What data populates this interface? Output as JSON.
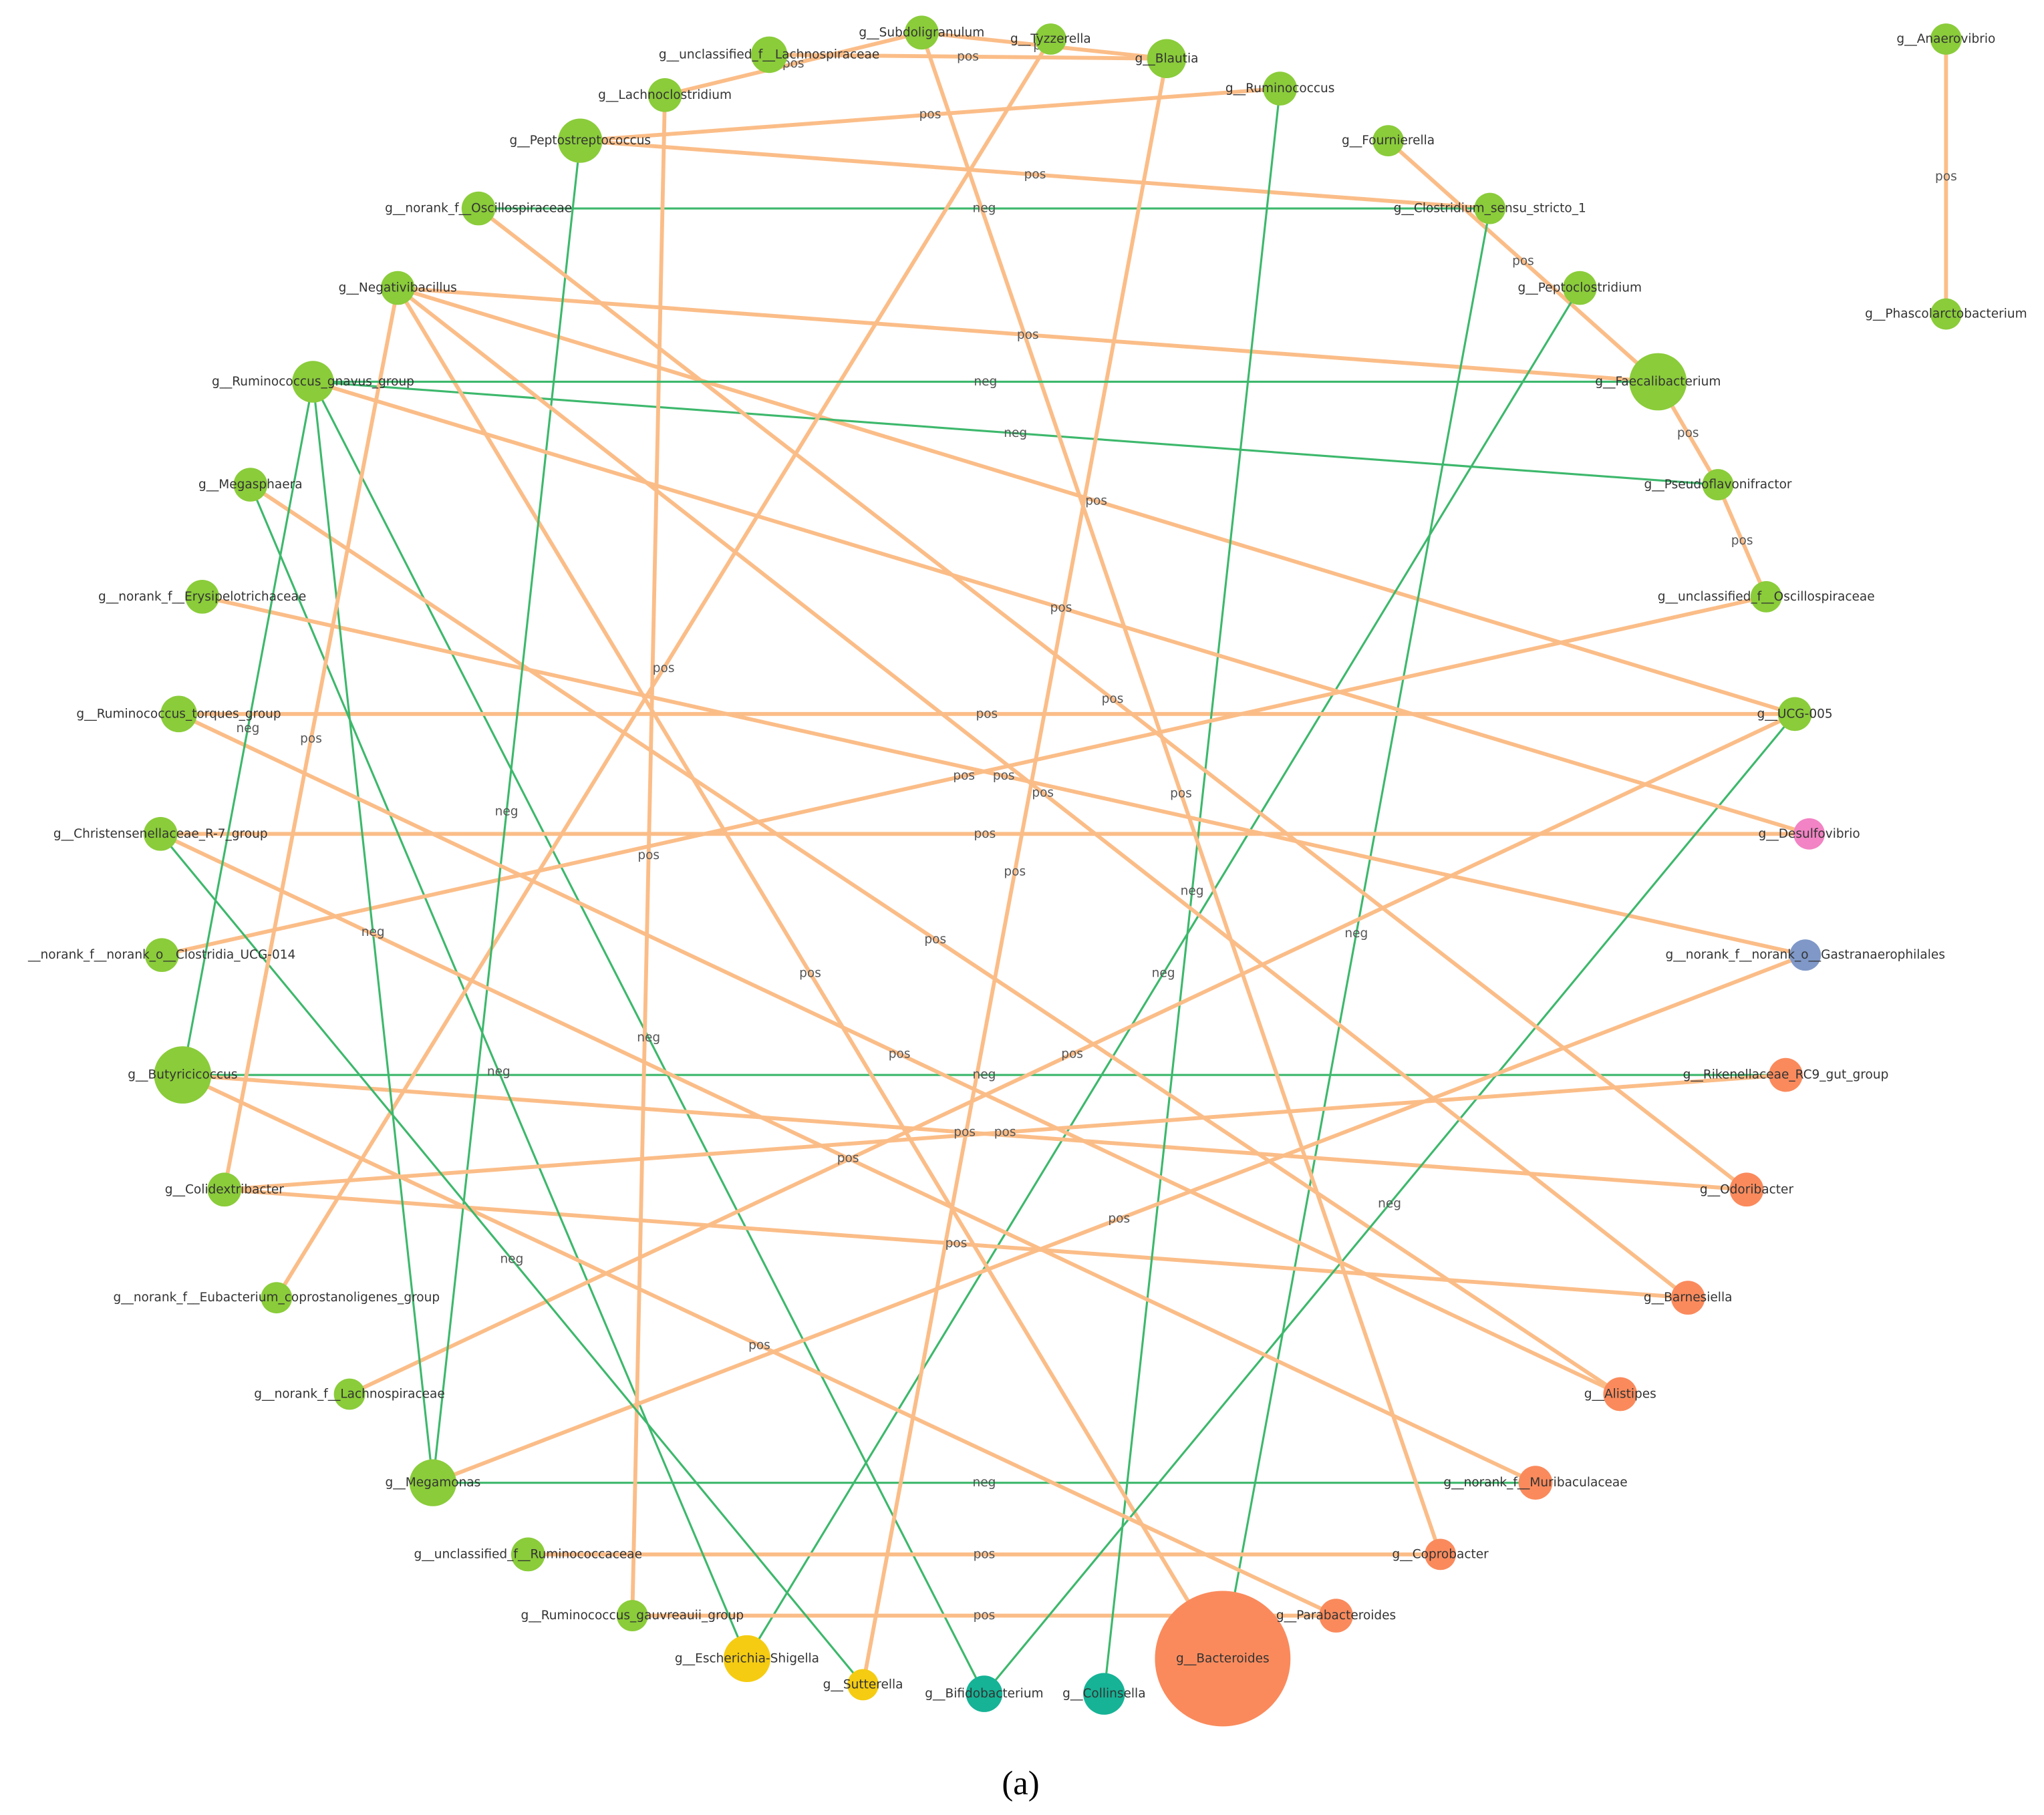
{
  "nodes": [
    {
      "label": "g__Subdoligranulum",
      "color": "#8acc3a"
    },
    {
      "label": "g__Tyzzerella",
      "color": "#8acc3a"
    },
    {
      "label": "g__Blautia",
      "color": "#8acc3a"
    },
    {
      "label": "g__unclassified_f__Lachnospiraceae",
      "color": "#8acc3a"
    },
    {
      "label": "g__Lachnoclostridium",
      "color": "#8acc3a"
    },
    {
      "label": "g__Ruminococcus",
      "color": "#8acc3a"
    },
    {
      "label": "g__Fournierella",
      "color": "#8acc3a"
    },
    {
      "label": "g__Peptostreptococcus",
      "color": "#8acc3a"
    },
    {
      "label": "g__norank_f__Oscillospiraceae",
      "color": "#8acc3a"
    },
    {
      "label": "g__Clostridium_sensu_stricto_1",
      "color": "#8acc3a"
    },
    {
      "label": "g__Peptoclostridium",
      "color": "#8acc3a"
    },
    {
      "label": "g__Negativibacillus",
      "color": "#8acc3a"
    },
    {
      "label": "g__Faecalibacterium",
      "color": "#8acc3a"
    },
    {
      "label": "g__Ruminococcus_gnavus_group",
      "color": "#8acc3a"
    },
    {
      "label": "g__Megasphaera",
      "color": "#8acc3a"
    },
    {
      "label": "g__Pseudoflavonifractor",
      "color": "#8acc3a"
    },
    {
      "label": "g__norank_f__Erysipelotrichaceae",
      "color": "#8acc3a"
    },
    {
      "label": "g__unclassified_f__Oscillospiraceae",
      "color": "#8acc3a"
    },
    {
      "label": "g__Ruminococcus_torques_group",
      "color": "#8acc3a"
    },
    {
      "label": "g__UCG-005",
      "color": "#8acc3a"
    },
    {
      "label": "g__Christensenellaceae_R-7_group",
      "color": "#8acc3a"
    },
    {
      "label": "g__Desulfovibrio",
      "color": "#f283c4"
    },
    {
      "label": "__norank_f__norank_o__Clostridia_UCG-014",
      "color": "#8acc3a"
    },
    {
      "label": "g__norank_f__norank_o__Gastranaerophilales",
      "color": "#7f98c8"
    },
    {
      "label": "g__Butyricicoccus",
      "color": "#8acc3a"
    },
    {
      "label": "g__Rikenellaceae_RC9_gut_group",
      "color": "#fa8a5c"
    },
    {
      "label": "g__Colidextribacter",
      "color": "#8acc3a"
    },
    {
      "label": "g__Odoribacter",
      "color": "#fa8a5c"
    },
    {
      "label": "g__norank_f__Eubacterium_coprostanoligenes_group",
      "color": "#8acc3a"
    },
    {
      "label": "g__Barnesiella",
      "color": "#fa8a5c"
    },
    {
      "label": "g__norank_f__Lachnospiraceae",
      "color": "#8acc3a"
    },
    {
      "label": "g__Alistipes",
      "color": "#fa8a5c"
    },
    {
      "label": "g__Megamonas",
      "color": "#8acc3a"
    },
    {
      "label": "g__norank_f__Muribaculaceae",
      "color": "#fa8a5c"
    },
    {
      "label": "g__unclassified_f__Ruminococcaceae",
      "color": "#8acc3a"
    },
    {
      "label": "g__Coprobacter",
      "color": "#fa8a5c"
    },
    {
      "label": "g__Ruminococcus_gauvreauii_group",
      "color": "#8acc3a"
    },
    {
      "label": "g__Parabacteroides",
      "color": "#fa8a5c"
    },
    {
      "label": "g__Escherichia-Shigella",
      "color": "#f5cc12"
    },
    {
      "label": "g__Sutterella",
      "color": "#f5cc12"
    },
    {
      "label": "g__Bifidobacterium",
      "color": "#16b396"
    },
    {
      "label": "g__Collinsella",
      "color": "#16b396"
    },
    {
      "label": "g__Bacteroides",
      "color": "#fa8a5c"
    },
    {
      "label": "g__Anaerovibrio",
      "color": "#8acc3a"
    },
    {
      "label": "g__Phascolarctobacterium",
      "color": "#8acc3a"
    }
  ],
  "edge_colors": {
    "pos": "#fbbd88",
    "neg": "#3db86c"
  },
  "edges": [
    {
      "source": "g__Anaerovibrio",
      "target": "g__Phascolarctobacterium",
      "label": "pos"
    },
    {
      "source": "g__Subdoligranulum",
      "target": "g__Blautia",
      "label": "pos"
    },
    {
      "source": "g__unclassified_f__Lachnospiraceae",
      "target": "g__Blautia",
      "label": "pos"
    },
    {
      "source": "g__Lachnoclostridium",
      "target": "g__Subdoligranulum",
      "label": "pos"
    },
    {
      "source": "g__Peptostreptococcus",
      "target": "g__Ruminococcus",
      "label": "pos"
    },
    {
      "source": "g__Peptostreptococcus",
      "target": "g__Clostridium_sensu_stricto_1",
      "label": "pos"
    },
    {
      "source": "g__norank_f__Oscillospiraceae",
      "target": "g__Clostridium_sensu_stricto_1",
      "label": "neg"
    },
    {
      "source": "g__Negativibacillus",
      "target": "g__Faecalibacterium",
      "label": "pos"
    },
    {
      "source": "g__Negativibacillus",
      "target": "g__UCG-005",
      "label": "pos"
    },
    {
      "source": "g__Ruminococcus_gnavus_group",
      "target": "g__Pseudoflavonifractor",
      "label": "neg"
    },
    {
      "source": "g__Ruminococcus_gnavus_group",
      "target": "g__Bifidobacterium",
      "label": "neg"
    },
    {
      "source": "g__Fournierella",
      "target": "g__Faecalibacterium",
      "label": "pos"
    },
    {
      "source": "g__Clostridium_sensu_stricto_1",
      "target": "g__Bacteroides",
      "label": "neg"
    },
    {
      "source": "g__Peptoclostridium",
      "target": "g__Escherichia-Shigella",
      "label": "neg"
    },
    {
      "source": "g__Faecalibacterium",
      "target": "g__Pseudoflavonifractor",
      "label": "pos"
    },
    {
      "source": "g__Pseudoflavonifractor",
      "target": "g__unclassified_f__Oscillospiraceae",
      "label": "pos"
    },
    {
      "source": "g__Ruminococcus_torques_group",
      "target": "g__UCG-005",
      "label": "pos"
    },
    {
      "source": "g__Christensenellaceae_R-7_group",
      "target": "g__Desulfovibrio",
      "label": "pos"
    },
    {
      "source": "g__Butyricicoccus",
      "target": "g__Rikenellaceae_RC9_gut_group",
      "label": "neg"
    },
    {
      "source": "g__Butyricicoccus",
      "target": "g__Odoribacter",
      "label": "pos"
    },
    {
      "source": "g__Colidextribacter",
      "target": "g__Barnesiella",
      "label": "pos"
    },
    {
      "source": "g__Megamonas",
      "target": "g__norank_f__Muribaculaceae",
      "label": "neg"
    },
    {
      "source": "g__unclassified_f__Ruminococcaceae",
      "target": "g__Coprobacter",
      "label": "pos"
    },
    {
      "source": "g__Ruminococcus_gauvreauii_group",
      "target": "g__Parabacteroides",
      "label": "pos"
    },
    {
      "source": "g__Escherichia-Shigella",
      "target": "g__Megasphaera",
      "label": "neg"
    },
    {
      "source": "g__Sutterella",
      "target": "g__Blautia",
      "label": "pos"
    },
    {
      "source": "g__Collinsella",
      "target": "g__Ruminococcus",
      "label": "neg"
    },
    {
      "source": "g__Bacteroides",
      "target": "g__Negativibacillus",
      "label": "pos"
    },
    {
      "source": "g__Megasphaera",
      "target": "g__Alistipes",
      "label": "pos"
    },
    {
      "source": "g__norank_f__Erysipelotrichaceae",
      "target": "g__norank_f__norank_o__Gastranaerophilales",
      "label": "pos"
    },
    {
      "source": "__norank_f__norank_o__Clostridia_UCG-014",
      "target": "g__unclassified_f__Oscillospiraceae",
      "label": "pos"
    },
    {
      "source": "g__norank_f__Eubacterium_coprostanoligenes_group",
      "target": "g__Tyzzerella",
      "label": "pos"
    },
    {
      "source": "g__norank_f__Lachnospiraceae",
      "target": "g__UCG-005",
      "label": "pos"
    },
    {
      "source": "g__Megamonas",
      "target": "g__Peptostreptococcus",
      "label": "neg"
    },
    {
      "source": "g__Ruminococcus_gnavus_group",
      "target": "g__Megamonas",
      "label": "neg"
    },
    {
      "source": "g__Bifidobacterium",
      "target": "g__UCG-005",
      "label": "neg"
    },
    {
      "source": "g__Parabacteroides",
      "target": "g__Butyricicoccus",
      "label": "pos"
    },
    {
      "source": "g__Barnesiella",
      "target": "g__Negativibacillus",
      "label": "pos"
    },
    {
      "source": "g__Alistipes",
      "target": "g__Ruminococcus_torques_group",
      "label": "pos"
    },
    {
      "source": "g__norank_f__Muribaculaceae",
      "target": "g__Christensenellaceae_R-7_group",
      "label": "pos"
    },
    {
      "source": "g__Odoribacter",
      "target": "g__norank_f__Oscillospiraceae",
      "label": "pos"
    },
    {
      "source": "g__Coprobacter",
      "target": "g__Subdoligranulum",
      "label": "pos"
    },
    {
      "source": "g__Rikenellaceae_RC9_gut_group",
      "target": "g__Colidextribacter",
      "label": "pos"
    },
    {
      "source": "g__Desulfovibrio",
      "target": "g__Ruminococcus_gnavus_group",
      "label": "pos"
    },
    {
      "source": "g__norank_f__norank_o__Gastranaerophilales",
      "target": "g__Megamonas",
      "label": "pos"
    },
    {
      "source": "g__Lachnoclostridium",
      "target": "g__Ruminococcus_gauvreauii_group",
      "label": "pos"
    },
    {
      "source": "g__Ruminococcus_gnavus_group",
      "target": "g__Butyricicoccus",
      "label": "neg"
    },
    {
      "source": "g__Christensenellaceae_R-7_group",
      "target": "g__Sutterella",
      "label": "neg"
    },
    {
      "source": "g__Negativibacillus",
      "target": "g__Colidextribacter",
      "label": "pos"
    },
    {
      "source": "g__Faecalibacterium",
      "target": "g__Ruminococcus_gnavus_group",
      "label": "neg"
    }
  ],
  "caption": "(a)"
}
